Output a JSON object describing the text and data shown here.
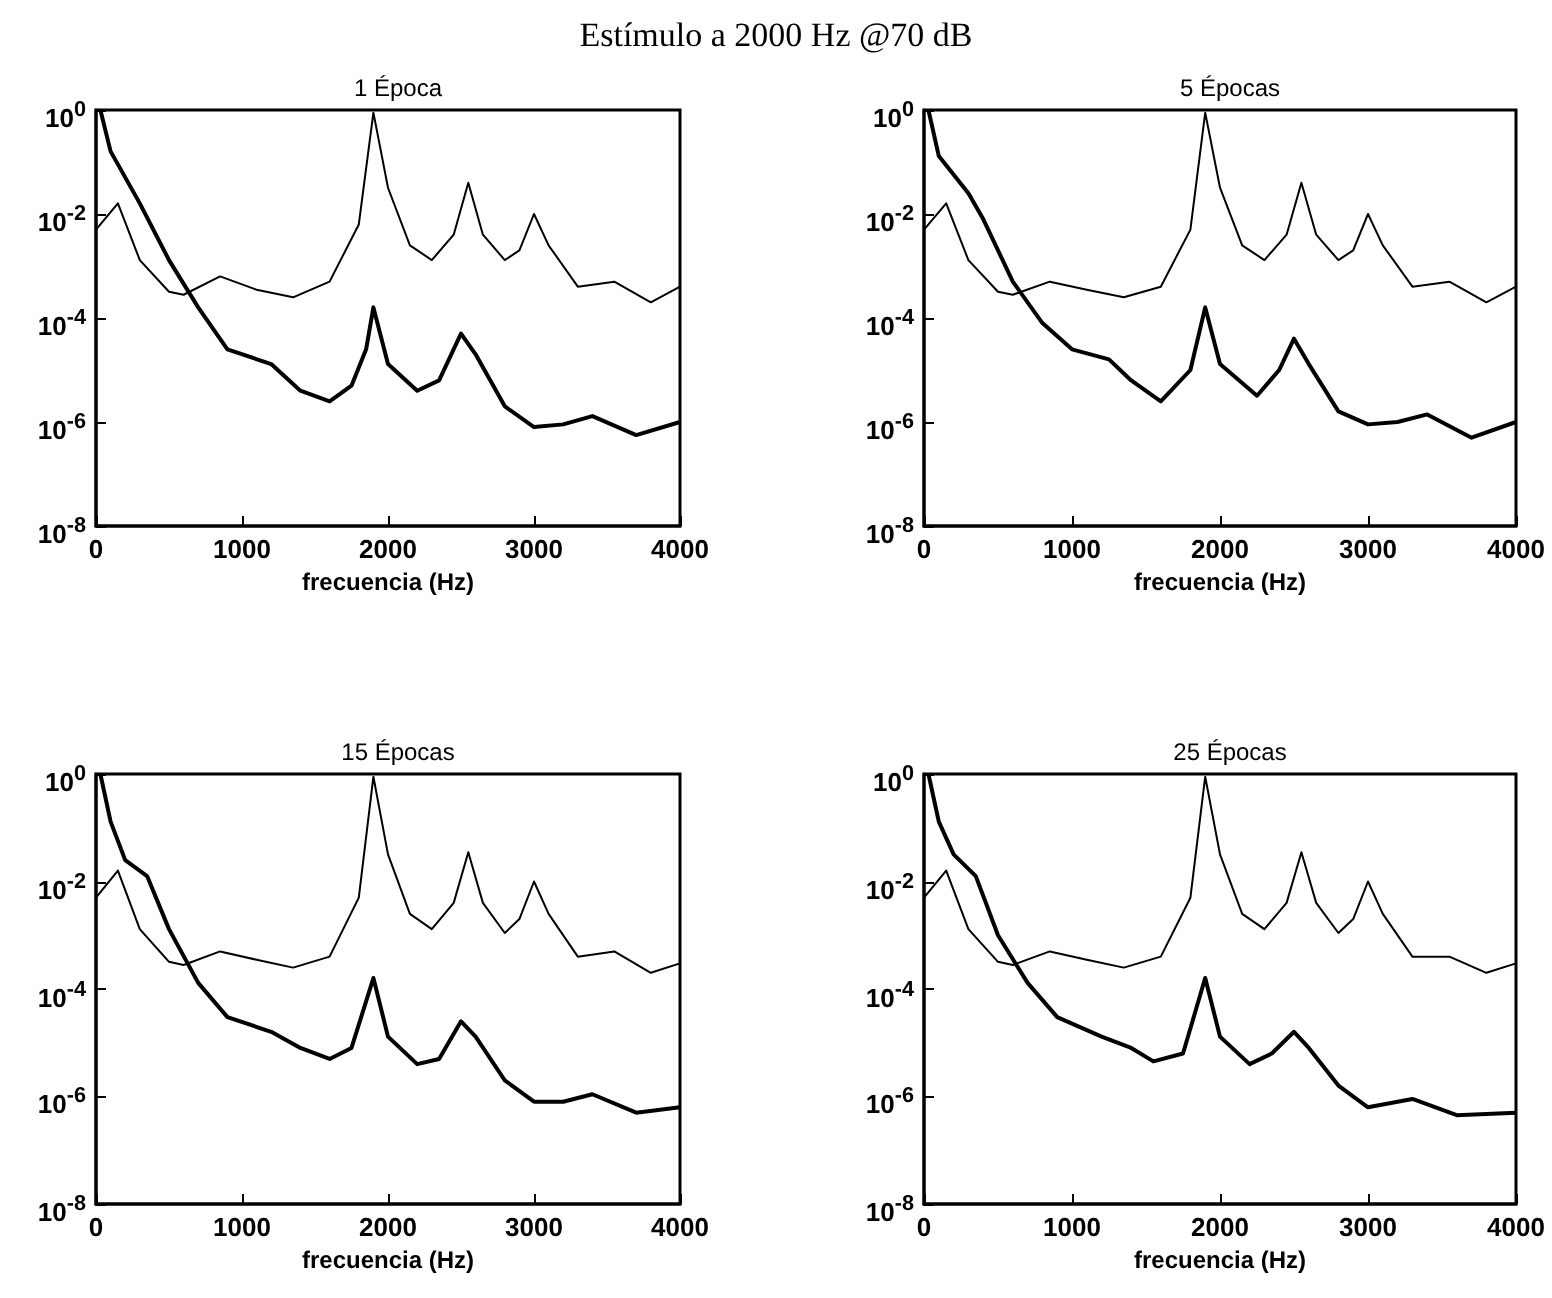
{
  "chart_data": [
    {
      "type": "line",
      "title": "1 Época",
      "xlabel": "frecuencia (Hz)",
      "annotations": [
        "Estímulo a 2000 Hz @70 dB"
      ],
      "log": "y",
      "grid": false,
      "xlim": [
        0,
        4000
      ],
      "xticks": [
        0,
        1000,
        2000,
        3000,
        4000
      ],
      "ylim": [
        1e-08,
        1
      ],
      "yticks": [
        {
          "value": 1,
          "label": "10$^{0}$"
        },
        {
          "value": 0.01,
          "label": "10$^{-2}$"
        },
        {
          "value": 0.0001,
          "label": "10$^{-4}$"
        },
        {
          "value": 1e-06,
          "label": "10$^{-6}$"
        },
        {
          "value": 1e-08,
          "label": "10$^{-8}$"
        }
      ],
      "series": [
        {
          "color": "#000000",
          "x": [
            0,
            150,
            300,
            500,
            600,
            850,
            1100,
            1350,
            1600,
            1800,
            1900,
            2000,
            2150,
            2300,
            2450,
            2550,
            2650,
            2800,
            2900,
            3000,
            3100,
            3300,
            3550,
            3800,
            4000
          ],
          "values": [
            0.005,
            0.016,
            0.0013,
            0.00032,
            0.00028,
            0.00063,
            0.00035,
            0.00025,
            0.0005,
            0.0063,
            0.89,
            0.032,
            0.0025,
            0.0013,
            0.004,
            0.04,
            0.004,
            0.0013,
            0.002,
            0.01,
            0.0025,
            0.0004,
            0.0005,
            0.0002,
            0.0004
          ]
        },
        {
          "color": "#000000",
          "x": [
            30,
            100,
            300,
            500,
            700,
            900,
            1200,
            1400,
            1600,
            1750,
            1850,
            1900,
            2000,
            2200,
            2350,
            2500,
            2600,
            2800,
            3000,
            3200,
            3400,
            3700,
            4000
          ],
          "values": [
            1,
            0.16,
            0.016,
            0.0013,
            0.00016,
            2.5e-05,
            1.3e-05,
            4e-06,
            2.5e-06,
            5e-06,
            2.5e-05,
            0.00016,
            1.3e-05,
            4e-06,
            6.3e-06,
            5e-05,
            2e-05,
            2e-06,
            8e-07,
            9e-07,
            1.3e-06,
            5.6e-07,
            1e-06
          ]
        }
      ]
    },
    {
      "type": "line",
      "title": "5 Épocas",
      "xlabel": "frecuencia (Hz)",
      "log": "y",
      "grid": false,
      "xlim": [
        0,
        4000
      ],
      "xticks": [
        0,
        1000,
        2000,
        3000,
        4000
      ],
      "ylim": [
        1e-08,
        1
      ],
      "yticks": [
        {
          "value": 1,
          "label": "10$^{0}$"
        },
        {
          "value": 0.01,
          "label": "10$^{-2}$"
        },
        {
          "value": 0.0001,
          "label": "10$^{-4}$"
        },
        {
          "value": 1e-06,
          "label": "10$^{-6}$"
        },
        {
          "value": 1e-08,
          "label": "10$^{-8}$"
        }
      ],
      "series": [
        {
          "color": "#000000",
          "x": [
            0,
            150,
            300,
            500,
            600,
            850,
            1100,
            1350,
            1600,
            1800,
            1900,
            2000,
            2150,
            2300,
            2450,
            2550,
            2650,
            2800,
            2900,
            3000,
            3100,
            3300,
            3550,
            3800,
            4000
          ],
          "values": [
            0.005,
            0.016,
            0.0013,
            0.00032,
            0.00028,
            0.0005,
            0.00035,
            0.00025,
            0.0004,
            0.005,
            0.89,
            0.032,
            0.0025,
            0.0013,
            0.004,
            0.04,
            0.004,
            0.0013,
            0.002,
            0.01,
            0.0025,
            0.0004,
            0.0005,
            0.0002,
            0.0004
          ]
        },
        {
          "color": "#000000",
          "x": [
            30,
            100,
            300,
            400,
            600,
            800,
            1000,
            1250,
            1400,
            1600,
            1800,
            1900,
            2000,
            2250,
            2400,
            2500,
            2600,
            2800,
            3000,
            3200,
            3400,
            3700,
            4000
          ],
          "values": [
            1,
            0.13,
            0.025,
            0.008,
            0.0005,
            8e-05,
            2.5e-05,
            1.6e-05,
            6.3e-06,
            2.5e-06,
            1e-05,
            0.00016,
            1.3e-05,
            3.2e-06,
            1e-05,
            4e-05,
            1.3e-05,
            1.6e-06,
            9e-07,
            1e-06,
            1.4e-06,
            5e-07,
            1e-06
          ]
        }
      ]
    },
    {
      "type": "line",
      "title": "15 Épocas",
      "xlabel": "frecuencia (Hz)",
      "log": "y",
      "grid": false,
      "xlim": [
        0,
        4000
      ],
      "xticks": [
        0,
        1000,
        2000,
        3000,
        4000
      ],
      "ylim": [
        1e-08,
        1
      ],
      "yticks": [
        {
          "value": 1,
          "label": "10$^{0}$"
        },
        {
          "value": 0.01,
          "label": "10$^{-2}$"
        },
        {
          "value": 0.0001,
          "label": "10$^{-4}$"
        },
        {
          "value": 1e-06,
          "label": "10$^{-6}$"
        },
        {
          "value": 1e-08,
          "label": "10$^{-8}$"
        }
      ],
      "series": [
        {
          "color": "#000000",
          "x": [
            0,
            150,
            300,
            500,
            600,
            850,
            1100,
            1350,
            1600,
            1800,
            1900,
            2000,
            2150,
            2300,
            2450,
            2550,
            2650,
            2800,
            2900,
            3000,
            3100,
            3300,
            3550,
            3800,
            4000
          ],
          "values": [
            0.005,
            0.016,
            0.0013,
            0.00032,
            0.00028,
            0.0005,
            0.00035,
            0.00025,
            0.0004,
            0.005,
            0.89,
            0.032,
            0.0025,
            0.0013,
            0.004,
            0.035,
            0.004,
            0.0011,
            0.002,
            0.01,
            0.0025,
            0.0004,
            0.0005,
            0.0002,
            0.0003
          ]
        },
        {
          "color": "#000000",
          "x": [
            30,
            100,
            200,
            350,
            500,
            700,
            900,
            1200,
            1400,
            1600,
            1750,
            1900,
            2000,
            2200,
            2350,
            2500,
            2600,
            2800,
            3000,
            3200,
            3400,
            3700,
            4000
          ],
          "values": [
            1,
            0.13,
            0.025,
            0.0126,
            0.0013,
            0.00013,
            3e-05,
            1.6e-05,
            8e-06,
            5e-06,
            8e-06,
            0.00016,
            1.3e-05,
            4e-06,
            5e-06,
            2.5e-05,
            1.3e-05,
            2e-06,
            8e-07,
            8e-07,
            1.1e-06,
            5e-07,
            6.3e-07
          ]
        }
      ]
    },
    {
      "type": "line",
      "title": "25 Épocas",
      "xlabel": "frecuencia (Hz)",
      "log": "y",
      "grid": false,
      "xlim": [
        0,
        4000
      ],
      "xticks": [
        0,
        1000,
        2000,
        3000,
        4000
      ],
      "ylim": [
        1e-08,
        1
      ],
      "yticks": [
        {
          "value": 1,
          "label": "10$^{0}$"
        },
        {
          "value": 0.01,
          "label": "10$^{-2}$"
        },
        {
          "value": 0.0001,
          "label": "10$^{-4}$"
        },
        {
          "value": 1e-06,
          "label": "10$^{-6}$"
        },
        {
          "value": 1e-08,
          "label": "10$^{-8}$"
        }
      ],
      "series": [
        {
          "color": "#000000",
          "x": [
            0,
            150,
            300,
            500,
            600,
            850,
            1100,
            1350,
            1600,
            1800,
            1900,
            2000,
            2150,
            2300,
            2450,
            2550,
            2650,
            2800,
            2900,
            3000,
            3100,
            3300,
            3550,
            3800,
            4000
          ],
          "values": [
            0.005,
            0.016,
            0.0013,
            0.00032,
            0.00028,
            0.0005,
            0.00035,
            0.00025,
            0.0004,
            0.005,
            0.89,
            0.032,
            0.0025,
            0.0013,
            0.004,
            0.035,
            0.004,
            0.0011,
            0.002,
            0.01,
            0.0025,
            0.0004,
            0.0004,
            0.0002,
            0.0003
          ]
        },
        {
          "color": "#000000",
          "x": [
            30,
            100,
            200,
            350,
            500,
            700,
            900,
            1200,
            1400,
            1550,
            1750,
            1900,
            2000,
            2200,
            2350,
            2500,
            2600,
            2800,
            3000,
            3300,
            3600,
            4000
          ],
          "values": [
            1,
            0.13,
            0.032,
            0.0126,
            0.001,
            0.00013,
            3e-05,
            1.3e-05,
            8e-06,
            4.5e-06,
            6.3e-06,
            0.00016,
            1.3e-05,
            4e-06,
            6.3e-06,
            1.6e-05,
            8e-06,
            1.6e-06,
            6.3e-07,
            9e-07,
            4.5e-07,
            5e-07
          ]
        }
      ]
    }
  ]
}
